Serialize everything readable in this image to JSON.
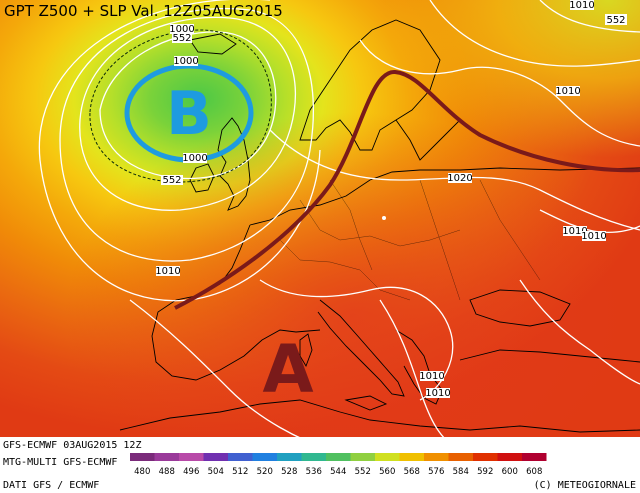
{
  "title": "GPT Z500 + SLP Val. 12Z05AUG2015",
  "footer": {
    "run_line": "GFS-ECMWF 03AUG2015 12Z",
    "model_line": "MTG-MULTI GFS-ECMWF",
    "data_line": "DATI GFS / ECMWF",
    "copyright": "(C) METEOGIORNALE"
  },
  "pressure_centers": {
    "low_letter": "B",
    "high_letter": "A",
    "low_color": "#1e9be0",
    "high_color": "#7a1a1a"
  },
  "isobar_labels": {
    "l1": "1000",
    "l2": "552",
    "l3": "1010",
    "l4": "552",
    "l5": "1000",
    "l6": "1000",
    "l7": "552",
    "l8": "1010",
    "l9": "1020",
    "l10": "1010",
    "l11": "1010",
    "l12": "1010",
    "l13": "1010",
    "l14": "1010"
  },
  "legend": {
    "values": [
      "480",
      "488",
      "496",
      "504",
      "512",
      "520",
      "528",
      "536",
      "544",
      "552",
      "560",
      "568",
      "576",
      "584",
      "592",
      "600",
      "608"
    ],
    "colors": [
      "#7a2a7a",
      "#9a3a9a",
      "#b84aa8",
      "#7030b0",
      "#4060d0",
      "#2080e0",
      "#20a0c0",
      "#30b890",
      "#50c060",
      "#90d040",
      "#d0e020",
      "#f0c000",
      "#f09000",
      "#e86000",
      "#e03000",
      "#d01010",
      "#b00030"
    ]
  },
  "palette": {
    "ridge_line": "#7a1a1a",
    "low_ring": "#1e9be0",
    "coast": "#000000"
  }
}
